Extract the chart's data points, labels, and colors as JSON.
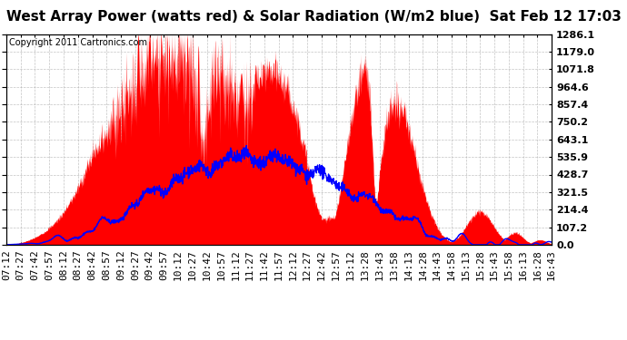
{
  "title": "West Array Power (watts red) & Solar Radiation (W/m2 blue)  Sat Feb 12 17:03",
  "copyright": "Copyright 2011 Cartronics.com",
  "ylabel_right": [
    "0.0",
    "107.2",
    "214.4",
    "321.5",
    "428.7",
    "535.9",
    "643.1",
    "750.2",
    "857.4",
    "964.6",
    "1071.8",
    "1179.0",
    "1286.1"
  ],
  "ymax": 1286.1,
  "ymin": 0.0,
  "background_color": "#ffffff",
  "plot_bg_color": "#ffffff",
  "grid_color": "#aaaaaa",
  "red_fill_color": "#ff0000",
  "blue_line_color": "#0000ff",
  "title_fontsize": 11,
  "copyright_fontsize": 7,
  "tick_fontsize": 8,
  "x_tick_labels": [
    "07:12",
    "07:27",
    "07:42",
    "07:57",
    "08:12",
    "08:27",
    "08:42",
    "08:57",
    "09:12",
    "09:27",
    "09:42",
    "09:57",
    "10:12",
    "10:27",
    "10:42",
    "10:57",
    "11:12",
    "11:27",
    "11:42",
    "11:57",
    "12:12",
    "12:27",
    "12:42",
    "12:57",
    "13:12",
    "13:28",
    "13:43",
    "13:58",
    "14:13",
    "14:28",
    "14:43",
    "14:58",
    "15:13",
    "15:28",
    "15:43",
    "15:58",
    "16:13",
    "16:28",
    "16:43"
  ]
}
